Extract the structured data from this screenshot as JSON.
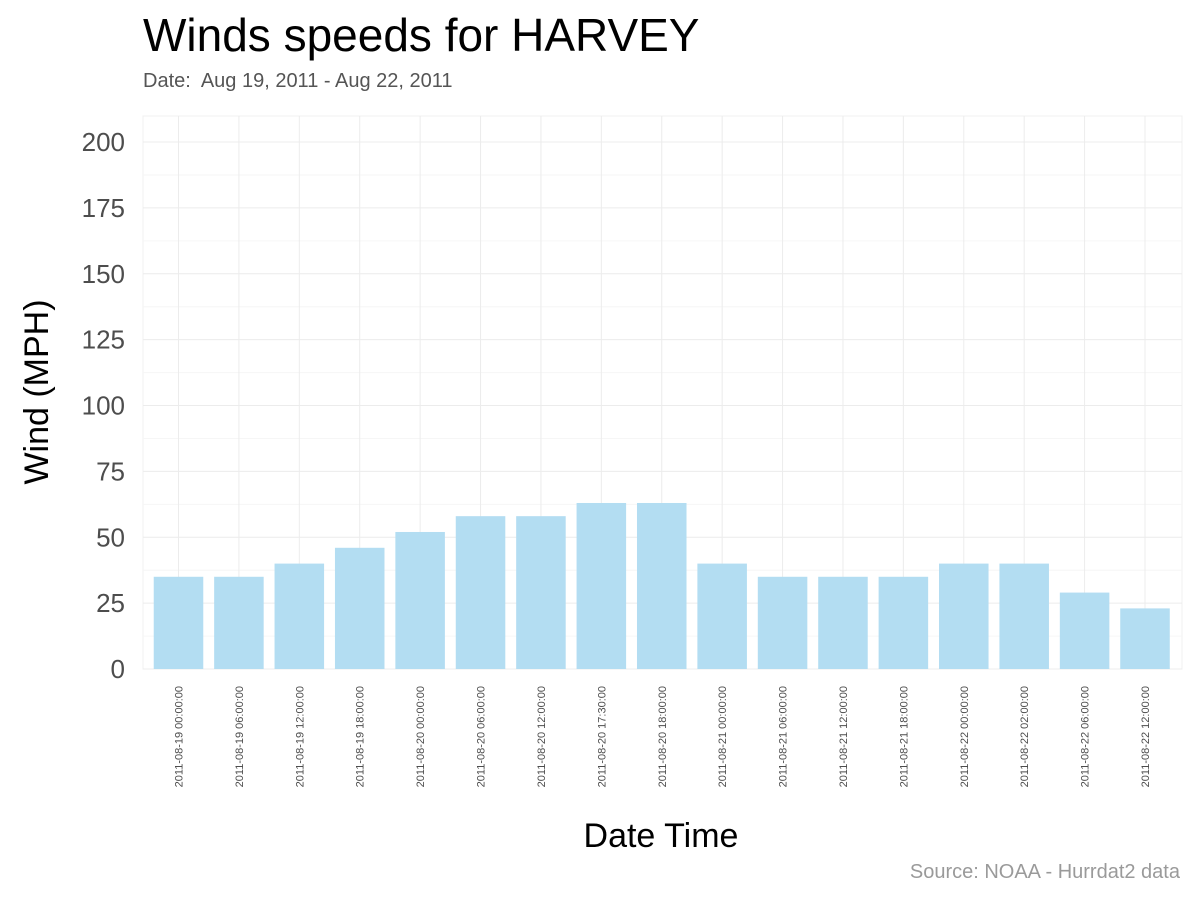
{
  "chart_data": {
    "type": "bar",
    "title": "Winds speeds for HARVEY",
    "subtitle": "Date:  Aug 19, 2011 - Aug 22, 2011",
    "xlabel": "Date Time",
    "ylabel": "Wind (MPH)",
    "caption": "Source: NOAA - Hurrdat2 data",
    "ylim": [
      0,
      200
    ],
    "yticks": [
      0,
      25,
      50,
      75,
      100,
      125,
      150,
      175,
      200
    ],
    "grid": true,
    "bar_color": "#b3ddf2",
    "categories": [
      "2011-08-19 00:00:00",
      "2011-08-19 06:00:00",
      "2011-08-19 12:00:00",
      "2011-08-19 18:00:00",
      "2011-08-20 00:00:00",
      "2011-08-20 06:00:00",
      "2011-08-20 12:00:00",
      "2011-08-20 17:30:00",
      "2011-08-20 18:00:00",
      "2011-08-21 00:00:00",
      "2011-08-21 06:00:00",
      "2011-08-21 12:00:00",
      "2011-08-21 18:00:00",
      "2011-08-22 00:00:00",
      "2011-08-22 02:00:00",
      "2011-08-22 06:00:00",
      "2011-08-22 12:00:00"
    ],
    "values": [
      35,
      35,
      40,
      46,
      52,
      58,
      58,
      63,
      63,
      40,
      35,
      35,
      35,
      40,
      40,
      29,
      23
    ]
  }
}
